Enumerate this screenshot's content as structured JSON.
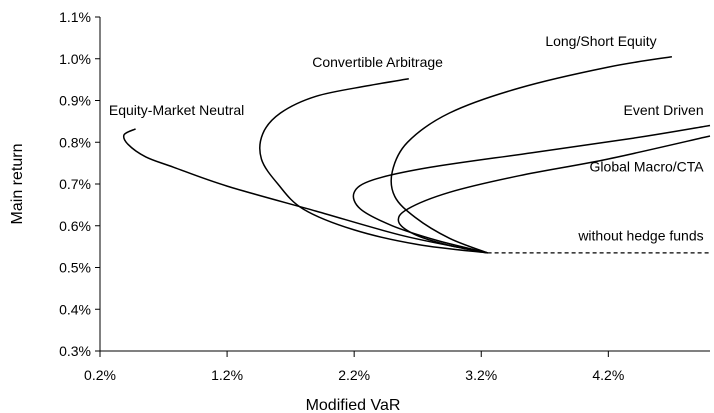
{
  "chart_data": {
    "type": "line",
    "title": "",
    "xlabel": "Modified VaR",
    "ylabel": "Main return",
    "xlim": [
      0.2,
      5.0
    ],
    "ylim": [
      0.3,
      1.1
    ],
    "x_ticks": [
      "0.2%",
      "1.2%",
      "2.2%",
      "3.2%",
      "4.2%"
    ],
    "x_tick_values": [
      0.2,
      1.2,
      2.2,
      3.2,
      4.2
    ],
    "y_ticks": [
      "0.3%",
      "0.4%",
      "0.5%",
      "0.6%",
      "0.7%",
      "0.8%",
      "0.9%",
      "1.0%",
      "1.1%"
    ],
    "y_tick_values": [
      0.3,
      0.4,
      0.5,
      0.6,
      0.7,
      0.8,
      0.9,
      1.0,
      1.1
    ],
    "grid": false,
    "legend": "none",
    "series": [
      {
        "name": "Equity-Market Neutral",
        "x": [
          3.25,
          2.6,
          1.9,
          1.2,
          0.78,
          0.56,
          0.42,
          0.39,
          0.48
        ],
        "y": [
          0.535,
          0.575,
          0.635,
          0.695,
          0.74,
          0.765,
          0.795,
          0.818,
          0.832
        ],
        "label_x": 0.27,
        "label_y": 0.865
      },
      {
        "name": "Convertible Arbitrage",
        "x": [
          3.25,
          2.7,
          2.2,
          1.8,
          1.6,
          1.47,
          1.48,
          1.62,
          1.9,
          2.3,
          2.63
        ],
        "y": [
          0.535,
          0.555,
          0.59,
          0.64,
          0.7,
          0.76,
          0.82,
          0.87,
          0.91,
          0.935,
          0.952
        ],
        "label_x": 1.87,
        "label_y": 0.98
      },
      {
        "name": "Long/Short Equity",
        "x": [
          3.25,
          2.95,
          2.68,
          2.52,
          2.5,
          2.62,
          2.95,
          3.5,
          4.2,
          4.7
        ],
        "y": [
          0.535,
          0.57,
          0.62,
          0.67,
          0.73,
          0.8,
          0.87,
          0.93,
          0.98,
          1.005
        ],
        "label_x": 4.58,
        "label_y": 1.03
      },
      {
        "name": "Event Driven",
        "x": [
          3.25,
          2.85,
          2.5,
          2.25,
          2.2,
          2.35,
          2.8,
          3.6,
          4.4,
          5.0
        ],
        "y": [
          0.535,
          0.565,
          0.6,
          0.64,
          0.68,
          0.71,
          0.74,
          0.775,
          0.81,
          0.84
        ],
        "label_x": 4.95,
        "label_y": 0.865
      },
      {
        "name": "Global Macro/CTA",
        "x": [
          3.25,
          2.92,
          2.67,
          2.55,
          2.62,
          2.95,
          3.5,
          4.2,
          5.0
        ],
        "y": [
          0.535,
          0.555,
          0.58,
          0.61,
          0.64,
          0.68,
          0.72,
          0.76,
          0.815
        ],
        "label_x": 4.95,
        "label_y": 0.73
      },
      {
        "name": "without hedge funds",
        "style": "dashed",
        "x": [
          3.25,
          5.0
        ],
        "y": [
          0.535,
          0.535
        ],
        "label_x": 4.95,
        "label_y": 0.565
      }
    ]
  }
}
